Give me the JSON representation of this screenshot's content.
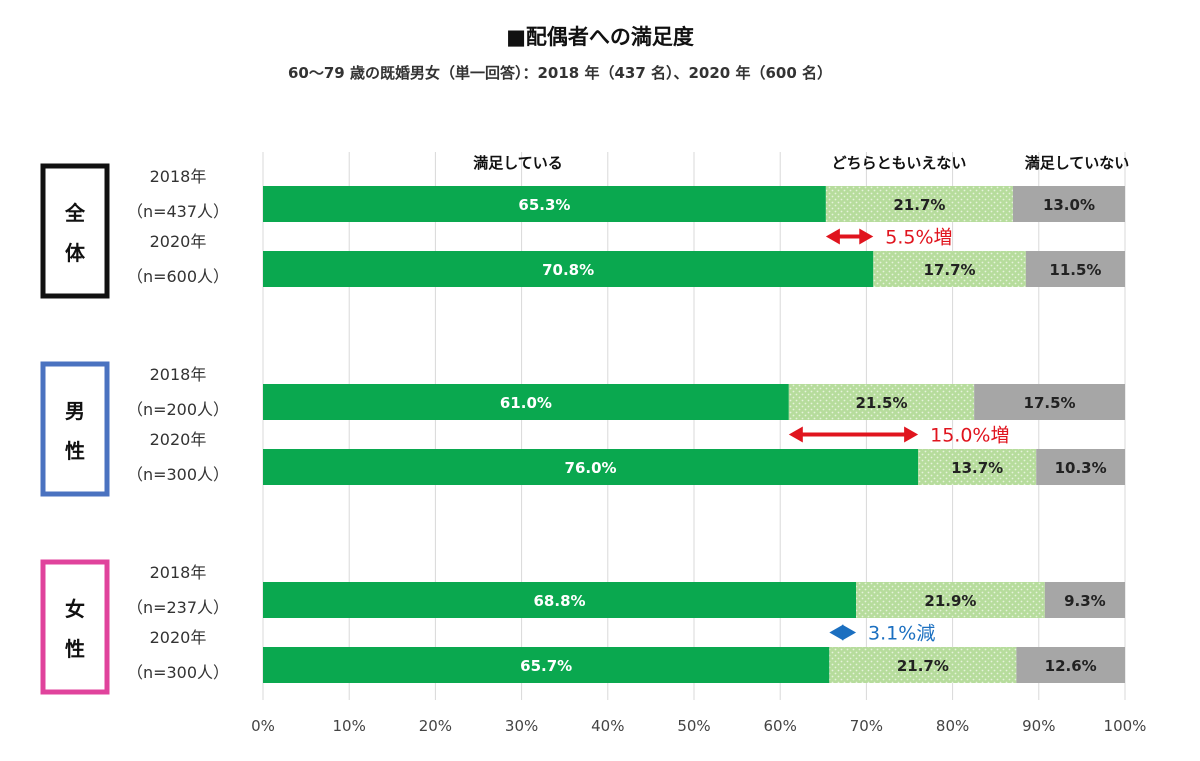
{
  "chart_data": {
    "type": "bar",
    "stacked": true,
    "orientation": "horizontal",
    "title": "■配偶者への満足度",
    "subtitle": "60～79 歳の既婚男女（単一回答）：2018 年（437 名）、2020 年（600 名）",
    "series": [
      {
        "name": "満足している",
        "color": "#0aa84f"
      },
      {
        "name": "どちらともいえない",
        "color": "#b6dc9c"
      },
      {
        "name": "満足していない",
        "color": "#a6a6a6"
      }
    ],
    "groups": [
      {
        "label_lines": [
          "全",
          "体"
        ],
        "border_color": "#111111",
        "rows": [
          {
            "year": "2018年",
            "n": "（n=437人）",
            "values": [
              65.3,
              21.7,
              13.0
            ],
            "labels": [
              "65.3%",
              "21.7%",
              "13.0%"
            ]
          },
          {
            "year": "2020年",
            "n": "（n=600人）",
            "values": [
              70.8,
              17.7,
              11.5
            ],
            "labels": [
              "70.8%",
              "17.7%",
              "11.5%"
            ]
          }
        ],
        "change": {
          "text": "5.5%増",
          "from": 65.3,
          "to": 70.8,
          "color": "#e0141e"
        }
      },
      {
        "label_lines": [
          "男",
          "性"
        ],
        "border_color": "#4a72c0",
        "rows": [
          {
            "year": "2018年",
            "n": "（n=200人）",
            "values": [
              61.0,
              21.5,
              17.5
            ],
            "labels": [
              "61.0%",
              "21.5%",
              "17.5%"
            ]
          },
          {
            "year": "2020年",
            "n": "（n=300人）",
            "values": [
              76.0,
              13.7,
              10.3
            ],
            "labels": [
              "76.0%",
              "13.7%",
              "10.3%"
            ]
          }
        ],
        "change": {
          "text": "15.0%増",
          "from": 61.0,
          "to": 76.0,
          "color": "#e0141e"
        }
      },
      {
        "label_lines": [
          "女",
          "性"
        ],
        "border_color": "#e0439c",
        "rows": [
          {
            "year": "2018年",
            "n": "（n=237人）",
            "values": [
              68.8,
              21.9,
              9.3
            ],
            "labels": [
              "68.8%",
              "21.9%",
              "9.3%"
            ]
          },
          {
            "year": "2020年",
            "n": "（n=300人）",
            "values": [
              65.7,
              21.7,
              12.6
            ],
            "labels": [
              "65.7%",
              "21.7%",
              "12.6%"
            ]
          }
        ],
        "change": {
          "text": "3.1%減",
          "from": 65.7,
          "to": 68.8,
          "color": "#1b6fc0"
        }
      }
    ],
    "x_ticks": [
      "0%",
      "10%",
      "20%",
      "30%",
      "40%",
      "50%",
      "60%",
      "70%",
      "80%",
      "90%",
      "100%"
    ],
    "xlim": [
      0,
      100
    ],
    "grid": true,
    "legend_position": "top"
  }
}
